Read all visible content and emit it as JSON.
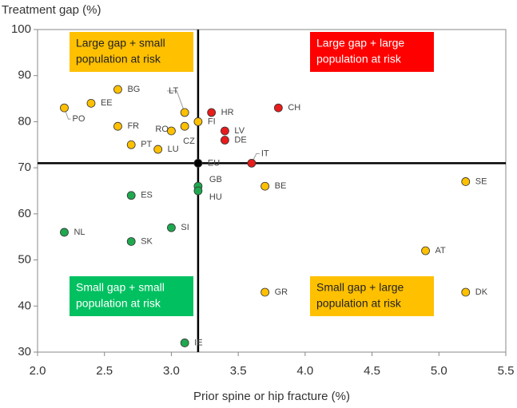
{
  "chart_data": {
    "type": "scatter",
    "y_label": "Treatment gap (%)",
    "x_label": "Prior spine or hip fracture (%)",
    "xlim": [
      2.0,
      5.5
    ],
    "ylim": [
      30,
      100
    ],
    "xticks": [
      {
        "value": 2,
        "label": "2.0"
      },
      2.5,
      {
        "value": 3,
        "label": "3.0"
      },
      3.5,
      {
        "value": 4,
        "label": "4.0"
      },
      4.5,
      {
        "value": 5,
        "label": "5.0"
      },
      5.5
    ],
    "yticks": [
      30,
      40,
      50,
      60,
      70,
      80,
      90,
      100
    ],
    "reference_lines": {
      "x": 3.2,
      "y": 71
    },
    "series": [
      {
        "labels": [
          "BG",
          "EE",
          "PO",
          "FR",
          "PT",
          "LU",
          "RO",
          "CZ",
          "LT",
          "FI",
          "HR",
          "CH",
          "LV",
          "DE",
          "IT",
          "EU",
          "GB",
          "HU",
          "BE",
          "SE",
          "ES",
          "NL",
          "SI",
          "SK",
          "AT",
          "GR",
          "DK",
          "IE"
        ],
        "x": [
          2.6,
          2.4,
          2.2,
          2.6,
          2.7,
          2.9,
          3.0,
          3.1,
          3.1,
          3.2,
          3.3,
          3.8,
          3.4,
          3.4,
          3.6,
          3.2,
          3.2,
          3.2,
          3.7,
          5.2,
          2.7,
          2.2,
          3.0,
          2.7,
          4.9,
          3.7,
          5.2,
          3.1
        ],
        "values": [
          87,
          84,
          83,
          79,
          75,
          74,
          78,
          79,
          82,
          80,
          82,
          83,
          78,
          76,
          71,
          71,
          66,
          65,
          66,
          67,
          64,
          56,
          57,
          54,
          52,
          43,
          43,
          32
        ],
        "colors": [
          "#FFC000",
          "#FFC000",
          "#FFC000",
          "#FFC000",
          "#FFC000",
          "#FFC000",
          "#FFC000",
          "#FFC000",
          "#FFC000",
          "#FFC000",
          "#E81C1C",
          "#E81C1C",
          "#E81C1C",
          "#E81C1C",
          "#E81C1C",
          "#000000",
          "#1FA84F",
          "#1FA84F",
          "#FFC000",
          "#FFC000",
          "#1FA84F",
          "#1FA84F",
          "#1FA84F",
          "#1FA84F",
          "#FFC000",
          "#FFC000",
          "#FFC000",
          "#1FA84F"
        ]
      }
    ],
    "annotations": [
      {
        "lines": [
          "Large gap + small",
          "population at risk"
        ],
        "color": "#FFC000",
        "text_color": "#222222"
      },
      {
        "lines": [
          "Large gap + large",
          "population at risk"
        ],
        "color": "#FF0000",
        "text_color": "#FFFFFF"
      },
      {
        "lines": [
          "Small gap + small",
          "population at risk"
        ],
        "color": "#00C060",
        "text_color": "#FFFFFF"
      },
      {
        "lines": [
          "Small gap + large",
          "population at risk"
        ],
        "color": "#FFC000",
        "text_color": "#222222"
      }
    ]
  }
}
